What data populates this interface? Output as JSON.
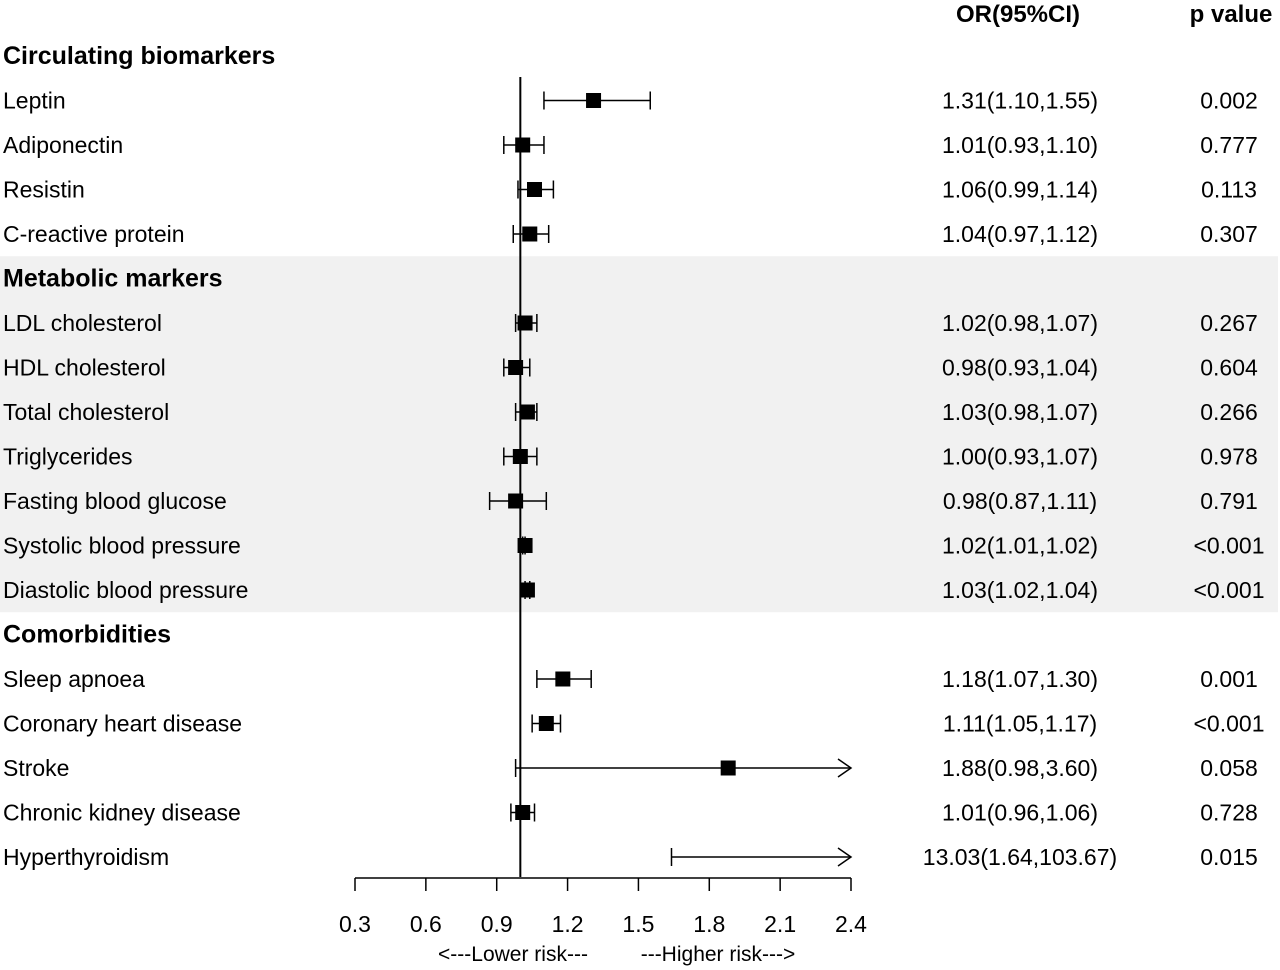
{
  "chart_data": {
    "type": "forest",
    "columns": {
      "or_header": "OR(95%CI)",
      "p_header": "p value"
    },
    "xaxis": {
      "ticks": [
        0.3,
        0.6,
        0.9,
        1.2,
        1.5,
        1.8,
        2.1,
        2.4
      ],
      "tick_labels": [
        "0.3",
        "0.6",
        "0.9",
        "1.2",
        "1.5",
        "1.8",
        "2.1",
        "2.4"
      ],
      "range": [
        0.3,
        2.4
      ],
      "reference_line": 1.0,
      "lower_label": "<---Lower risk---",
      "higher_label": "---Higher risk--->"
    },
    "groups": [
      {
        "title": "Circulating biomarkers",
        "shaded": false,
        "rows": [
          {
            "label": "Leptin",
            "or": 1.31,
            "lo": 1.1,
            "hi": 1.55,
            "ci_text": "1.31(1.10,1.55)",
            "p": "0.002"
          },
          {
            "label": "Adiponectin",
            "or": 1.01,
            "lo": 0.93,
            "hi": 1.1,
            "ci_text": "1.01(0.93,1.10)",
            "p": "0.777"
          },
          {
            "label": "Resistin",
            "or": 1.06,
            "lo": 0.99,
            "hi": 1.14,
            "ci_text": "1.06(0.99,1.14)",
            "p": "0.113"
          },
          {
            "label": "C-reactive protein",
            "or": 1.04,
            "lo": 0.97,
            "hi": 1.12,
            "ci_text": "1.04(0.97,1.12)",
            "p": "0.307"
          }
        ]
      },
      {
        "title": "Metabolic markers",
        "shaded": true,
        "rows": [
          {
            "label": "LDL cholesterol",
            "or": 1.02,
            "lo": 0.98,
            "hi": 1.07,
            "ci_text": "1.02(0.98,1.07)",
            "p": "0.267"
          },
          {
            "label": "HDL cholesterol",
            "or": 0.98,
            "lo": 0.93,
            "hi": 1.04,
            "ci_text": "0.98(0.93,1.04)",
            "p": "0.604"
          },
          {
            "label": "Total cholesterol",
            "or": 1.03,
            "lo": 0.98,
            "hi": 1.07,
            "ci_text": "1.03(0.98,1.07)",
            "p": "0.266"
          },
          {
            "label": "Triglycerides",
            "or": 1.0,
            "lo": 0.93,
            "hi": 1.07,
            "ci_text": "1.00(0.93,1.07)",
            "p": "0.978"
          },
          {
            "label": "Fasting blood glucose",
            "or": 0.98,
            "lo": 0.87,
            "hi": 1.11,
            "ci_text": "0.98(0.87,1.11)",
            "p": "0.791"
          },
          {
            "label": "Systolic blood pressure",
            "or": 1.02,
            "lo": 1.01,
            "hi": 1.02,
            "ci_text": "1.02(1.01,1.02)",
            "p": "<0.001"
          },
          {
            "label": "Diastolic blood pressure",
            "or": 1.03,
            "lo": 1.02,
            "hi": 1.04,
            "ci_text": "1.03(1.02,1.04)",
            "p": "<0.001"
          }
        ]
      },
      {
        "title": "Comorbidities",
        "shaded": false,
        "rows": [
          {
            "label": "Sleep apnoea",
            "or": 1.18,
            "lo": 1.07,
            "hi": 1.3,
            "ci_text": "1.18(1.07,1.30)",
            "p": "0.001"
          },
          {
            "label": "Coronary heart disease",
            "or": 1.11,
            "lo": 1.05,
            "hi": 1.17,
            "ci_text": "1.11(1.05,1.17)",
            "p": "<0.001"
          },
          {
            "label": "Stroke",
            "or": 1.88,
            "lo": 0.98,
            "hi": 3.6,
            "ci_text": "1.88(0.98,3.60)",
            "p": "0.058"
          },
          {
            "label": "Chronic kidney disease",
            "or": 1.01,
            "lo": 0.96,
            "hi": 1.06,
            "ci_text": "1.01(0.96,1.06)",
            "p": "0.728"
          },
          {
            "label": "Hyperthyroidism",
            "or": 13.03,
            "lo": 1.64,
            "hi": 103.67,
            "ci_text": "13.03(1.64,103.67)",
            "p": "0.015"
          }
        ]
      }
    ],
    "colors": {
      "marker": "#000000",
      "shade": "#f1f1f1"
    }
  }
}
